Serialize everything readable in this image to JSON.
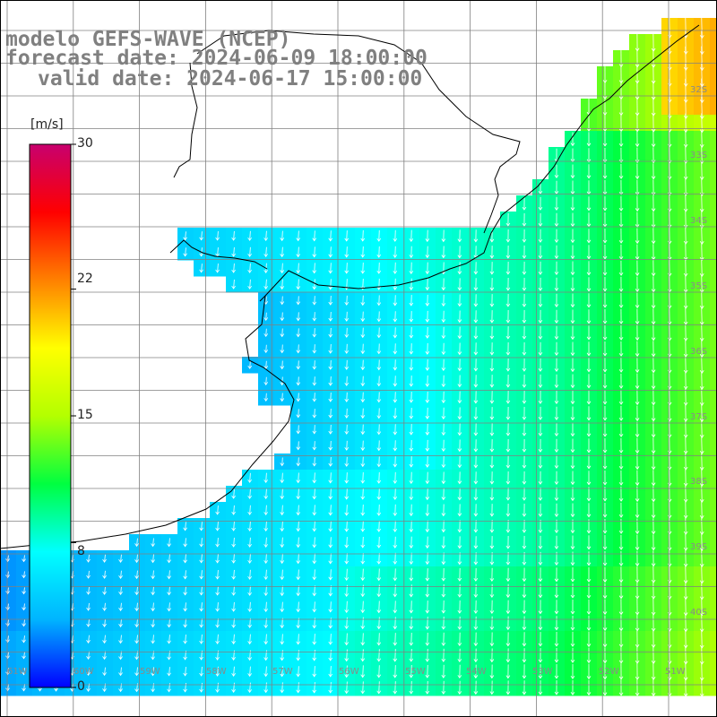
{
  "title": {
    "line1": "modelo GEFS-WAVE (NCEP)",
    "line2": "forecast date: 2024-06-09 18:00:00",
    "line3": "valid date: 2024-06-17 15:00:00"
  },
  "colorbar": {
    "unit": "[m/s]",
    "ticks": [
      "30",
      "22",
      "15",
      "8",
      "0"
    ],
    "tick_values": [
      30,
      22,
      15,
      8,
      0
    ],
    "min": 0,
    "max": 30,
    "colors": [
      "#0000ff",
      "#00b4ff",
      "#00ffff",
      "#00ff40",
      "#b4ff00",
      "#ffff00",
      "#ff8000",
      "#ff0000",
      "#c8006e"
    ]
  },
  "map": {
    "lat_labels": [
      "32S",
      "33S",
      "34S",
      "35S",
      "36S",
      "37S",
      "38S",
      "39S",
      "40S"
    ],
    "lat_values": [
      -32,
      -33,
      -34,
      -35,
      -36,
      -37,
      -38,
      -39,
      -40
    ],
    "lon_labels": [
      "61W",
      "60W",
      "59W",
      "58W",
      "57W",
      "56W",
      "55W",
      "54W",
      "53W",
      "52W",
      "51W"
    ],
    "lon_values": [
      -61,
      -60,
      -59,
      -58,
      -57,
      -56,
      -55,
      -54,
      -53,
      -52,
      -51
    ],
    "land_color": "#ffffff",
    "grid_color": "#808080",
    "arrow_color": "#ffffff",
    "coast_color": "#000000"
  }
}
